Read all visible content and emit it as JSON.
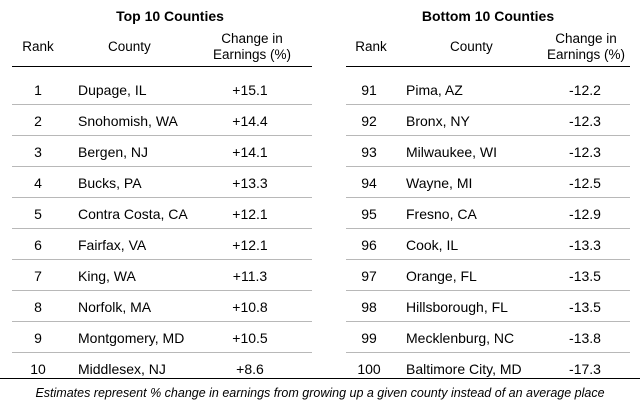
{
  "chart_data": [
    {
      "type": "table",
      "title": "Top 10 Counties",
      "columns": [
        "Rank",
        "County",
        "Change in Earnings (%)"
      ],
      "rows": [
        {
          "rank": "1",
          "county": "Dupage, IL",
          "change": "+15.1"
        },
        {
          "rank": "2",
          "county": "Snohomish, WA",
          "change": "+14.4"
        },
        {
          "rank": "3",
          "county": "Bergen, NJ",
          "change": "+14.1"
        },
        {
          "rank": "4",
          "county": "Bucks, PA",
          "change": "+13.3"
        },
        {
          "rank": "5",
          "county": "Contra Costa, CA",
          "change": "+12.1"
        },
        {
          "rank": "6",
          "county": "Fairfax, VA",
          "change": "+12.1"
        },
        {
          "rank": "7",
          "county": "King, WA",
          "change": "+11.3"
        },
        {
          "rank": "8",
          "county": "Norfolk, MA",
          "change": "+10.8"
        },
        {
          "rank": "9",
          "county": "Montgomery, MD",
          "change": "+10.5"
        },
        {
          "rank": "10",
          "county": "Middlesex, NJ",
          "change": "+8.6"
        }
      ]
    },
    {
      "type": "table",
      "title": "Bottom 10 Counties",
      "columns": [
        "Rank",
        "County",
        "Change in Earnings (%)"
      ],
      "rows": [
        {
          "rank": "91",
          "county": "Pima, AZ",
          "change": "-12.2"
        },
        {
          "rank": "92",
          "county": "Bronx, NY",
          "change": "-12.3"
        },
        {
          "rank": "93",
          "county": "Milwaukee, WI",
          "change": "-12.3"
        },
        {
          "rank": "94",
          "county": "Wayne, MI",
          "change": "-12.5"
        },
        {
          "rank": "95",
          "county": "Fresno, CA",
          "change": "-12.9"
        },
        {
          "rank": "96",
          "county": "Cook, IL",
          "change": "-13.3"
        },
        {
          "rank": "97",
          "county": "Orange, FL",
          "change": "-13.5"
        },
        {
          "rank": "98",
          "county": "Hillsborough, FL",
          "change": "-13.5"
        },
        {
          "rank": "99",
          "county": "Mecklenburg, NC",
          "change": "-13.8"
        },
        {
          "rank": "100",
          "county": "Baltimore City, MD",
          "change": "-17.3"
        }
      ]
    }
  ],
  "footnote": "Estimates represent % change in earnings from growing up a given county instead of an average place"
}
